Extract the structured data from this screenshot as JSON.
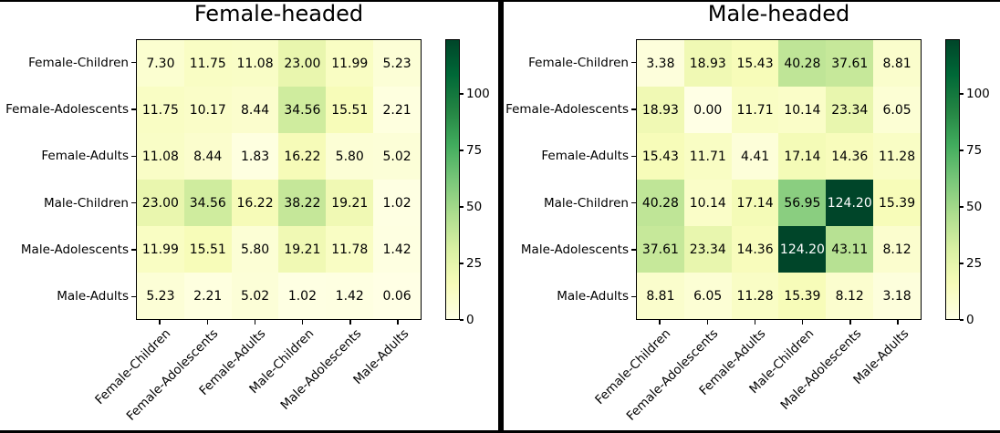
{
  "style": {
    "background": "#ffffff",
    "divider_color": "#000000",
    "axis_line_color": "#000000",
    "annotation_text_dark": "#000000",
    "annotation_text_light": "#ffffff",
    "colormap_name": "YlGn",
    "colormap_stops": [
      "#ffffe5",
      "#f7fcb9",
      "#d9f0a3",
      "#addd8e",
      "#78c679",
      "#41ab5d",
      "#238443",
      "#006837",
      "#004529"
    ]
  },
  "chart_data": [
    {
      "type": "heatmap",
      "title": "Female-headed",
      "x_categories": [
        "Female-Children",
        "Female-Adolescents",
        "Female-Adults",
        "Male-Children",
        "Male-Adolescents",
        "Male-Adults"
      ],
      "y_categories": [
        "Female-Children",
        "Female-Adolescents",
        "Female-Adults",
        "Male-Children",
        "Male-Adolescents",
        "Male-Adults"
      ],
      "values": [
        [
          7.3,
          11.75,
          11.08,
          23.0,
          11.99,
          5.23
        ],
        [
          11.75,
          10.17,
          8.44,
          34.56,
          15.51,
          2.21
        ],
        [
          11.08,
          8.44,
          1.83,
          16.22,
          5.8,
          5.02
        ],
        [
          23.0,
          34.56,
          16.22,
          38.22,
          19.21,
          1.02
        ],
        [
          11.99,
          15.51,
          5.8,
          19.21,
          11.78,
          1.42
        ],
        [
          5.23,
          2.21,
          5.02,
          1.02,
          1.42,
          0.06
        ]
      ],
      "value_format": ".2f",
      "colormap": "YlGn",
      "vmin": 0,
      "vmax": 124.2,
      "colorbar_ticks": [
        0,
        25,
        50,
        75,
        100
      ],
      "legend_position": "right-colorbar",
      "grid": false
    },
    {
      "type": "heatmap",
      "title": "Male-headed",
      "x_categories": [
        "Female-Children",
        "Female-Adolescents",
        "Female-Adults",
        "Male-Children",
        "Male-Adolescents",
        "Male-Adults"
      ],
      "y_categories": [
        "Female-Children",
        "Female-Adolescents",
        "Female-Adults",
        "Male-Children",
        "Male-Adolescents",
        "Male-Adults"
      ],
      "values": [
        [
          3.38,
          18.93,
          15.43,
          40.28,
          37.61,
          8.81
        ],
        [
          18.93,
          0.0,
          11.71,
          10.14,
          23.34,
          6.05
        ],
        [
          15.43,
          11.71,
          4.41,
          17.14,
          14.36,
          11.28
        ],
        [
          40.28,
          10.14,
          17.14,
          56.95,
          124.2,
          15.39
        ],
        [
          37.61,
          23.34,
          14.36,
          124.2,
          43.11,
          8.12
        ],
        [
          8.81,
          6.05,
          11.28,
          15.39,
          8.12,
          3.18
        ]
      ],
      "value_format": ".2f",
      "colormap": "YlGn",
      "vmin": 0,
      "vmax": 124.2,
      "colorbar_ticks": [
        0,
        25,
        50,
        75,
        100
      ],
      "legend_position": "right-colorbar",
      "grid": false
    }
  ]
}
